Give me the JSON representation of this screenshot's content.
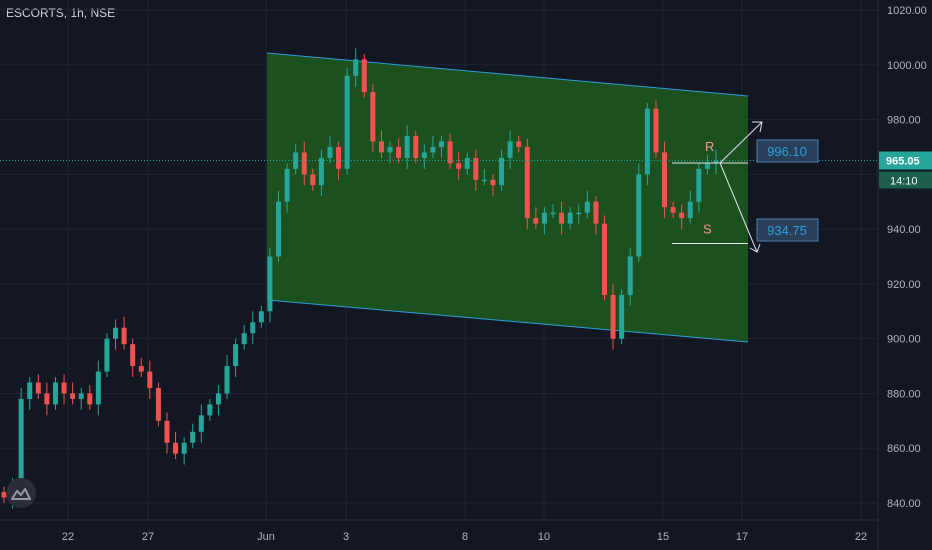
{
  "title": "ESCORTS, 1h, NSE",
  "colors": {
    "background": "#131722",
    "up": "#26a69a",
    "down": "#ef5350",
    "channel_fill": "#1e5a1e",
    "channel_line": "#2d9fd8",
    "price_line": "#26a69a"
  },
  "chart_data": {
    "type": "candlestick",
    "title": "ESCORTS, 1h, NSE",
    "x_tick_labels": [
      "22",
      "27",
      "Jun",
      "3",
      "8",
      "10",
      "15",
      "17",
      "22"
    ],
    "y_tick_labels": [
      "1020.00",
      "1000.00",
      "980.00",
      "965.00",
      "940.00",
      "920.00",
      "900.00",
      "880.00",
      "860.00",
      "840.00"
    ],
    "ylim": [
      828,
      1022
    ],
    "last_price": "965.05",
    "countdown": "14:10",
    "annotations": {
      "resistance_label": "R",
      "support_label": "S",
      "upper_target": "996.10",
      "lower_target": "934.75"
    },
    "close_path": [
      842,
      846,
      878,
      884,
      880,
      876,
      884,
      880,
      878,
      880,
      876,
      888,
      900,
      904,
      898,
      890,
      888,
      882,
      870,
      862,
      858,
      862,
      866,
      872,
      876,
      880,
      890,
      898,
      902,
      906,
      910,
      930,
      950,
      962,
      968,
      960,
      956,
      966,
      970,
      962,
      996,
      1002,
      990,
      972,
      968,
      970,
      966,
      974,
      966,
      968,
      970,
      972,
      964,
      962,
      966,
      958,
      958,
      956,
      966,
      972,
      970,
      944,
      942,
      946,
      946,
      942,
      946,
      946,
      950,
      942,
      916,
      900,
      916,
      930,
      960,
      984,
      968,
      948,
      946,
      944,
      950,
      962,
      964,
      965
    ]
  }
}
